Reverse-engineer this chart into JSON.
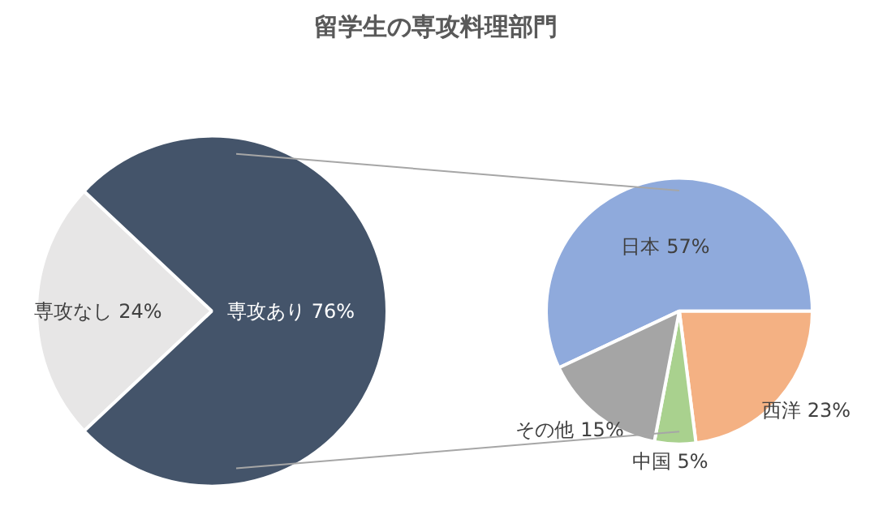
{
  "chart_data": [
    {
      "type": "pie",
      "title": "留学生の専攻料理部門",
      "categories": [
        "専攻なし",
        "専攻あり"
      ],
      "values": [
        24,
        76
      ],
      "colors": [
        "#e7e6e6",
        "#44546a"
      ],
      "value_labels": [
        "24%",
        "76%"
      ]
    },
    {
      "type": "pie",
      "categories": [
        "日本",
        "西洋",
        "中国",
        "その他"
      ],
      "values": [
        57,
        23,
        5,
        15
      ],
      "colors": [
        "#8faadc",
        "#f4b183",
        "#a9d18e",
        "#a5a5a5"
      ],
      "value_labels": [
        "57%",
        "23%",
        "5%",
        "15%"
      ]
    }
  ]
}
